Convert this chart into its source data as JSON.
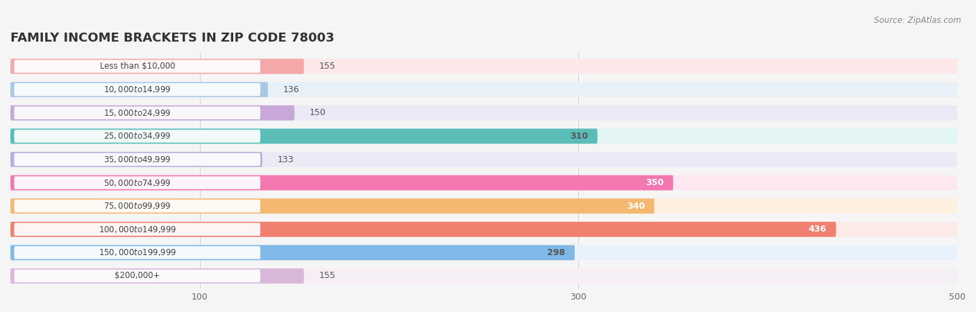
{
  "title": "FAMILY INCOME BRACKETS IN ZIP CODE 78003",
  "source": "Source: ZipAtlas.com",
  "categories": [
    "Less than $10,000",
    "$10,000 to $14,999",
    "$15,000 to $24,999",
    "$25,000 to $34,999",
    "$35,000 to $49,999",
    "$50,000 to $74,999",
    "$75,000 to $99,999",
    "$100,000 to $149,999",
    "$150,000 to $199,999",
    "$200,000+"
  ],
  "values": [
    155,
    136,
    150,
    310,
    133,
    350,
    340,
    436,
    298,
    155
  ],
  "bar_colors": [
    "#f4a9a8",
    "#a8c8e8",
    "#c8a8d8",
    "#5bbdb8",
    "#b8b0e0",
    "#f478b0",
    "#f4b870",
    "#f08070",
    "#80b8e8",
    "#d8b8d8"
  ],
  "bar_bg_colors": [
    "#fce8e8",
    "#e8f0f8",
    "#ede8f5",
    "#e0f5f4",
    "#edeaf8",
    "#fde8f2",
    "#fdf0e0",
    "#fceae8",
    "#e8f2fc",
    "#f5eef5"
  ],
  "label_colors_value": [
    "#555555",
    "#555555",
    "#555555",
    "#555555",
    "#555555",
    "#ffffff",
    "#ffffff",
    "#ffffff",
    "#555555",
    "#555555"
  ],
  "xlim": [
    0,
    500
  ],
  "xticks": [
    100,
    300,
    500
  ],
  "title_fontsize": 13,
  "bar_height": 0.65,
  "background_color": "#f5f5f5",
  "row_bg_color": "#ffffff"
}
